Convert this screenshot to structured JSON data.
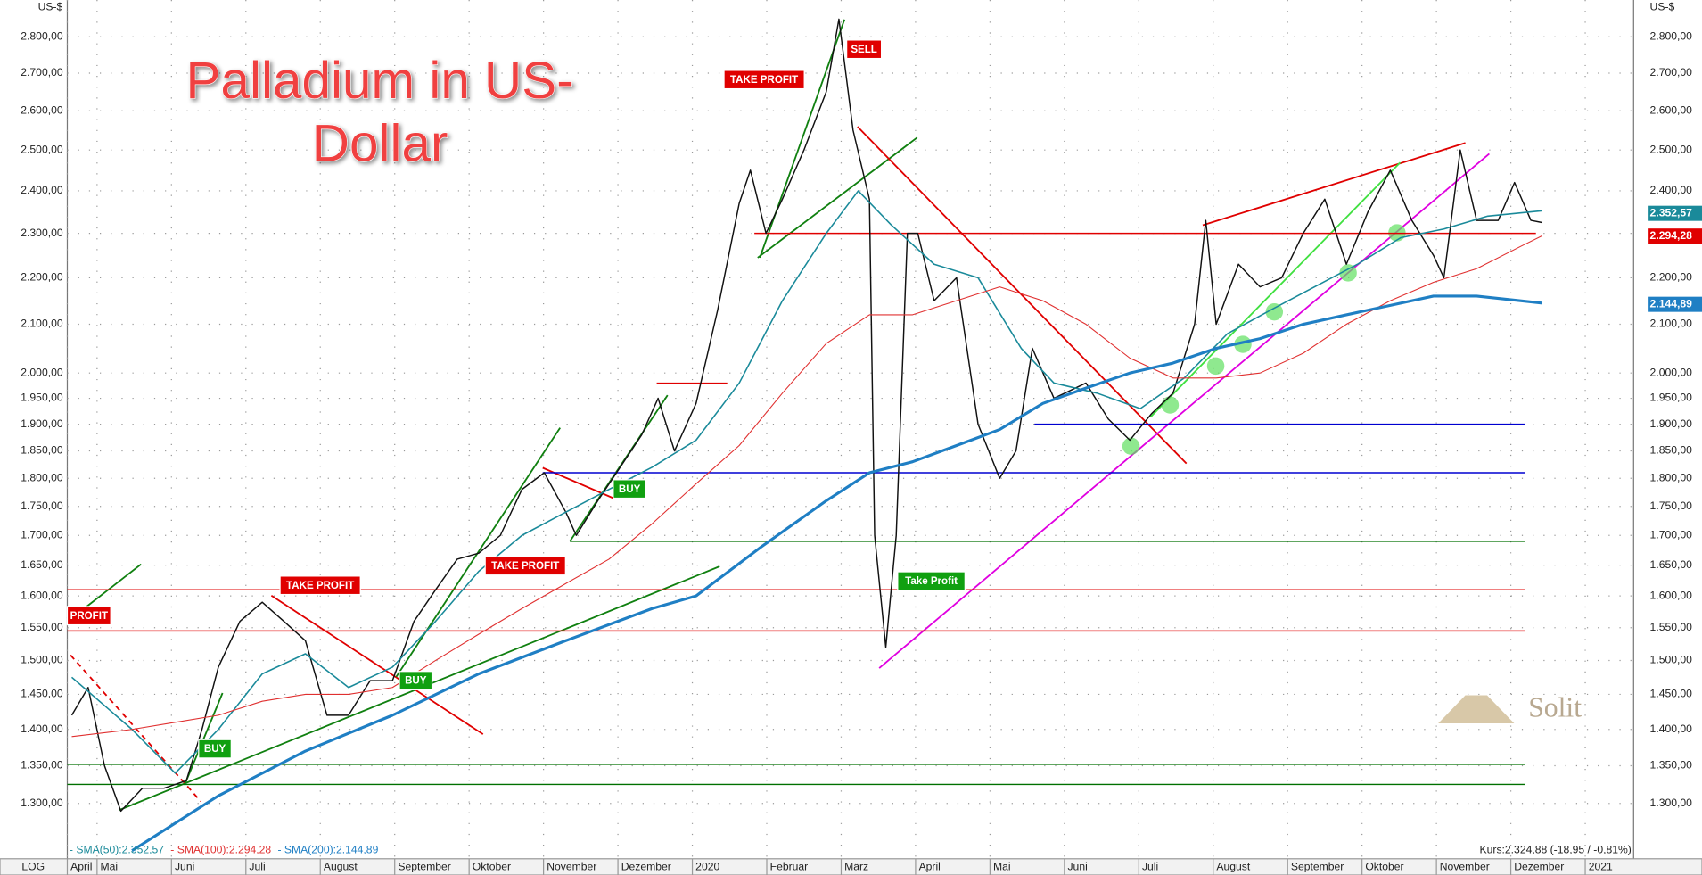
{
  "chart_data": {
    "type": "line",
    "log_scale": true,
    "grid": true,
    "title": [
      "Palladium in US-",
      "Dollar"
    ],
    "y_unit": "US-$",
    "scale_label": "LOG",
    "watermark": "Solit",
    "quote": "Kurs:2.324,88 (-18,95 / -0,81%)",
    "xlim": [
      0.6,
      21.65
    ],
    "ylim": [
      1230,
      2905
    ],
    "xticks": [
      {
        "value": 0.6,
        "label": "April"
      },
      {
        "value": 1,
        "label": "Mai"
      },
      {
        "value": 2,
        "label": "Juni"
      },
      {
        "value": 3,
        "label": "Juli"
      },
      {
        "value": 4,
        "label": "August"
      },
      {
        "value": 5,
        "label": "September"
      },
      {
        "value": 6,
        "label": "Oktober"
      },
      {
        "value": 7,
        "label": "November"
      },
      {
        "value": 8,
        "label": "Dezember"
      },
      {
        "value": 9,
        "label": "2020"
      },
      {
        "value": 10,
        "label": "Februar"
      },
      {
        "value": 11,
        "label": "März"
      },
      {
        "value": 12,
        "label": "April"
      },
      {
        "value": 13,
        "label": "Mai"
      },
      {
        "value": 14,
        "label": "Juni"
      },
      {
        "value": 15,
        "label": "Juli"
      },
      {
        "value": 16,
        "label": "August"
      },
      {
        "value": 17,
        "label": "September"
      },
      {
        "value": 18,
        "label": "Oktober"
      },
      {
        "value": 19,
        "label": "November"
      },
      {
        "value": 20,
        "label": "Dezember"
      },
      {
        "value": 21,
        "label": "2021"
      }
    ],
    "yticks": [
      {
        "value": 1300,
        "label": "1.300,00"
      },
      {
        "value": 1350,
        "label": "1.350,00"
      },
      {
        "value": 1400,
        "label": "1.400,00"
      },
      {
        "value": 1450,
        "label": "1.450,00"
      },
      {
        "value": 1500,
        "label": "1.500,00"
      },
      {
        "value": 1550,
        "label": "1.550,00"
      },
      {
        "value": 1600,
        "label": "1.600,00"
      },
      {
        "value": 1650,
        "label": "1.650,00"
      },
      {
        "value": 1700,
        "label": "1.700,00"
      },
      {
        "value": 1750,
        "label": "1.750,00"
      },
      {
        "value": 1800,
        "label": "1.800,00"
      },
      {
        "value": 1850,
        "label": "1.850,00"
      },
      {
        "value": 1900,
        "label": "1.900,00"
      },
      {
        "value": 1950,
        "label": "1.950,00"
      },
      {
        "value": 2000,
        "label": "2.000,00"
      },
      {
        "value": 2100,
        "label": "2.100,00"
      },
      {
        "value": 2200,
        "label": "2.200,00"
      },
      {
        "value": 2300,
        "label": "2.300,00"
      },
      {
        "value": 2400,
        "label": "2.400,00"
      },
      {
        "value": 2500,
        "label": "2.500,00"
      },
      {
        "value": 2600,
        "label": "2.600,00"
      },
      {
        "value": 2700,
        "label": "2.700,00"
      },
      {
        "value": 2800,
        "label": "2.800,00"
      }
    ],
    "series": [
      {
        "color": "#111111",
        "width": 1.2,
        "x": [
          0.66,
          0.88,
          1.1,
          1.32,
          1.61,
          1.9,
          2.2,
          2.41,
          2.63,
          2.92,
          3.22,
          3.51,
          3.8,
          4.09,
          4.38,
          4.67,
          4.97,
          5.26,
          5.55,
          5.84,
          6.13,
          6.42,
          6.71,
          7.01,
          7.3,
          7.44,
          7.73,
          8.03,
          8.32,
          8.54,
          8.76,
          9.05,
          9.34,
          9.63,
          9.78,
          9.99,
          10.21,
          10.5,
          10.8,
          10.97,
          11.16,
          11.38,
          11.45,
          11.6,
          11.74,
          11.89,
          12.03,
          12.25,
          12.55,
          12.84,
          13.13,
          13.35,
          13.57,
          13.86,
          14.29,
          14.59,
          14.88,
          15.17,
          15.46,
          15.75,
          15.9,
          16.04,
          16.34,
          16.63,
          16.92,
          17.21,
          17.5,
          17.79,
          18.08,
          18.38,
          18.67,
          18.96,
          19.1,
          19.32,
          19.54,
          19.83,
          20.05,
          20.27,
          20.42
        ],
        "values": [
          1420,
          1460,
          1350,
          1290,
          1320,
          1320,
          1330,
          1400,
          1490,
          1560,
          1590,
          1560,
          1530,
          1420,
          1420,
          1470,
          1470,
          1560,
          1610,
          1660,
          1670,
          1700,
          1780,
          1810,
          1740,
          1700,
          1760,
          1820,
          1880,
          1950,
          1850,
          1940,
          2130,
          2370,
          2450,
          2300,
          2380,
          2500,
          2650,
          2850,
          2550,
          2380,
          1700,
          1520,
          1700,
          2300,
          2300,
          2150,
          2200,
          1900,
          1800,
          1850,
          2050,
          1950,
          1980,
          1910,
          1870,
          1920,
          1960,
          2100,
          2330,
          2100,
          2230,
          2180,
          2200,
          2300,
          2380,
          2230,
          2350,
          2450,
          2330,
          2250,
          2200,
          2500,
          2330,
          2330,
          2420,
          2330,
          2325
        ]
      },
      {
        "name": "- SMA(50):2.352,57",
        "color": "#1a8a9a",
        "width": 1.3,
        "x": [
          0.66,
          1.47,
          2.05,
          2.63,
          3.22,
          3.8,
          4.38,
          4.97,
          5.55,
          6.13,
          6.71,
          7.3,
          7.88,
          8.46,
          9.05,
          9.63,
          10.21,
          10.8,
          11.23,
          11.67,
          12.25,
          12.84,
          13.42,
          13.86,
          14.44,
          15.02,
          15.61,
          16.19,
          16.77,
          17.36,
          17.94,
          18.52,
          19.1,
          19.69,
          20.42
        ],
        "values": [
          1475,
          1400,
          1340,
          1400,
          1480,
          1510,
          1460,
          1490,
          1560,
          1640,
          1700,
          1740,
          1780,
          1820,
          1870,
          1980,
          2150,
          2300,
          2400,
          2320,
          2230,
          2200,
          2050,
          1980,
          1960,
          1930,
          1990,
          2080,
          2130,
          2180,
          2230,
          2290,
          2310,
          2340,
          2352.57
        ]
      },
      {
        "name": "- SMA(100):2.294,28",
        "color": "#e03030",
        "width": 0.9,
        "x": [
          0.66,
          1.47,
          2.05,
          2.63,
          3.22,
          3.8,
          4.38,
          4.97,
          5.55,
          6.13,
          6.71,
          7.3,
          7.88,
          8.46,
          9.05,
          9.63,
          10.21,
          10.8,
          11.38,
          11.96,
          12.55,
          13.13,
          13.71,
          14.29,
          14.88,
          15.46,
          16.04,
          16.63,
          17.21,
          17.79,
          18.38,
          18.96,
          19.54,
          20.13,
          20.42
        ],
        "values": [
          1390,
          1400,
          1410,
          1420,
          1440,
          1450,
          1450,
          1460,
          1500,
          1540,
          1580,
          1620,
          1660,
          1720,
          1790,
          1860,
          1960,
          2060,
          2120,
          2120,
          2150,
          2180,
          2150,
          2100,
          2030,
          1990,
          1990,
          2000,
          2040,
          2100,
          2150,
          2190,
          2220,
          2270,
          2294.28
        ]
      },
      {
        "name": "- SMA(200):2.144,89",
        "color": "#1f7fc4",
        "width": 2.6,
        "x": [
          1.47,
          2.63,
          3.8,
          4.97,
          6.13,
          7.3,
          8.46,
          9.05,
          9.92,
          10.8,
          11.38,
          11.96,
          12.55,
          13.13,
          13.71,
          14.29,
          14.88,
          15.46,
          16.04,
          16.63,
          17.21,
          17.79,
          18.38,
          18.96,
          19.54,
          20.13,
          20.42
        ],
        "values": [
          1240,
          1310,
          1370,
          1420,
          1480,
          1530,
          1580,
          1600,
          1680,
          1760,
          1810,
          1830,
          1860,
          1890,
          1940,
          1970,
          2000,
          2020,
          2050,
          2070,
          2100,
          2120,
          2140,
          2160,
          2160,
          2150,
          2144.89
        ]
      }
    ],
    "levels": [
      {
        "value": 2300,
        "color": "#e00000"
      },
      {
        "value": 1900,
        "color": "#0000d0"
      },
      {
        "value": 1810,
        "color": "#0000d0"
      },
      {
        "value": 1690,
        "color": "#007000"
      },
      {
        "value": 1610,
        "color": "#e00000"
      },
      {
        "value": 1545,
        "color": "#e00000"
      },
      {
        "value": 1352,
        "color": "#007000"
      },
      {
        "value": 1325,
        "color": "#007000"
      }
    ],
    "price_tags": [
      {
        "text": "2.352,57",
        "color": "#1a8a9a"
      },
      {
        "text": "2.294,28",
        "color": "#e00000"
      },
      {
        "text": "2.144,89",
        "color": "#1f7fc4"
      }
    ],
    "annotations": [
      {
        "text": "PROFIT",
        "color": "#e00000"
      },
      {
        "text": "TAKE PROFIT",
        "color": "#e00000"
      },
      {
        "text": "TAKE PROFIT",
        "color": "#e00000"
      },
      {
        "text": "TAKE PROFIT",
        "color": "#e00000"
      },
      {
        "text": "SELL",
        "color": "#e00000"
      },
      {
        "text": "BUY",
        "color": "#10a010"
      },
      {
        "text": "BUY",
        "color": "#10a010"
      },
      {
        "text": "BUY",
        "color": "#10a010"
      },
      {
        "text": "Take Profit",
        "color": "#10a010"
      }
    ]
  }
}
